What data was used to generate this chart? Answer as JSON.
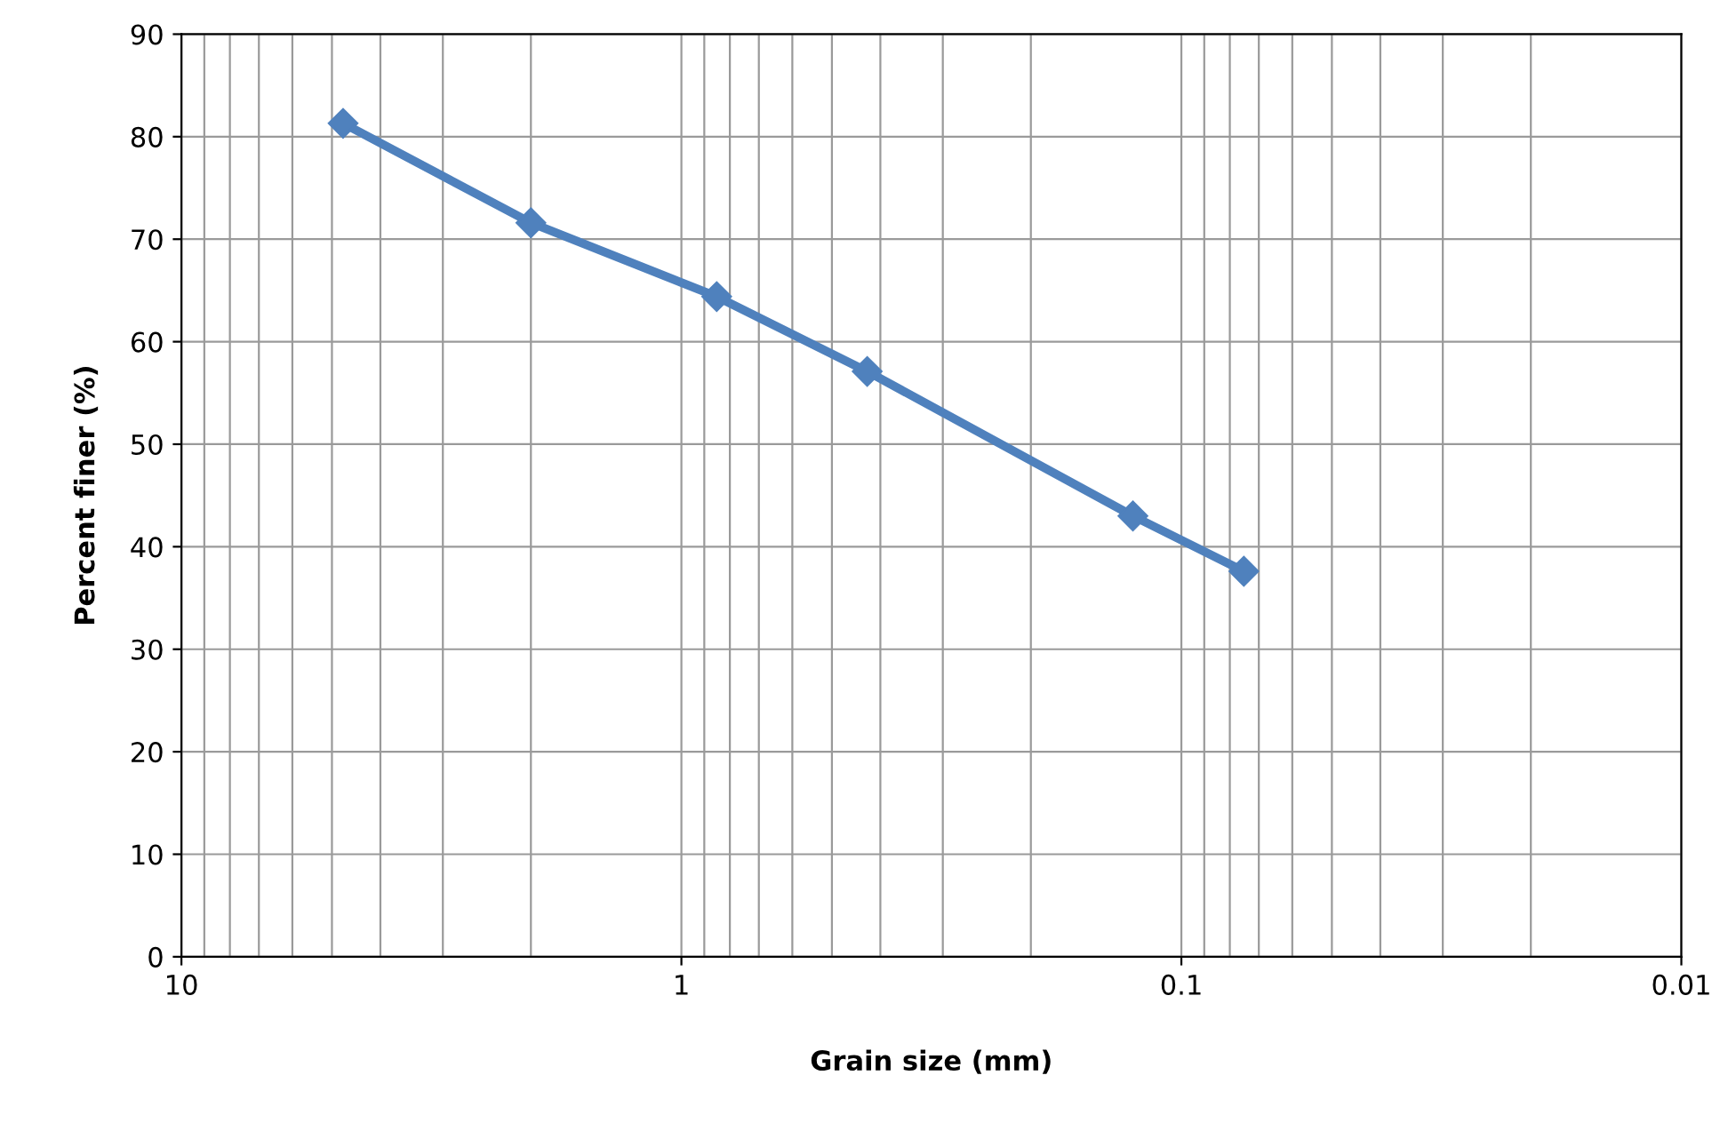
{
  "chart_data": {
    "type": "line",
    "xlabel": "Grain size (mm)",
    "ylabel": "Percent finer (%)",
    "x": [
      4.75,
      2.0,
      0.85,
      0.425,
      0.125,
      0.075
    ],
    "series": [
      {
        "color": "#4f81bd",
        "values": [
          81.3,
          71.6,
          64.4,
          57.1,
          43.0,
          37.6
        ]
      }
    ],
    "log": "x",
    "xlim": [
      10,
      0.01
    ],
    "xticks": [
      10,
      1,
      0.1,
      0.01
    ],
    "ylim": [
      0,
      90
    ],
    "yticks": [
      0,
      10,
      20,
      30,
      40,
      50,
      60,
      70,
      80,
      90
    ],
    "grid": true,
    "marker": "diamond",
    "line_style": "solid",
    "legend": false
  }
}
